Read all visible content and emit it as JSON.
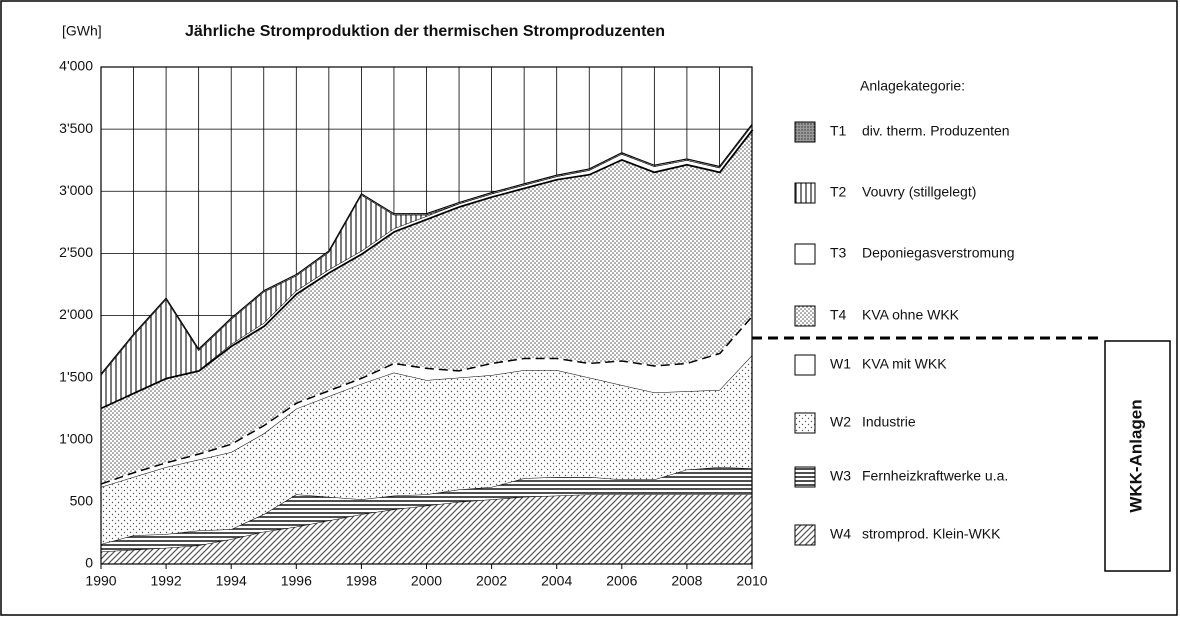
{
  "chart_data": {
    "type": "stacked-area",
    "title": "Jährliche Stromproduktion der thermischen Stromproduzenten",
    "y_label": "[GWh]",
    "legend_title": "Anlagekategorie:",
    "group_label": "WKK-Anlagen",
    "x": [
      1990,
      1991,
      1992,
      1993,
      1994,
      1995,
      1996,
      1997,
      1998,
      1999,
      2000,
      2001,
      2002,
      2003,
      2004,
      2005,
      2006,
      2007,
      2008,
      2009,
      2010
    ],
    "xlim": [
      1990,
      2010
    ],
    "xticks": [
      1990,
      1992,
      1994,
      1996,
      1998,
      2000,
      2002,
      2004,
      2006,
      2008,
      2010
    ],
    "ylim": [
      0,
      4000
    ],
    "yticks": [
      0,
      500,
      {
        "value": 1000,
        "label": "1'000"
      },
      {
        "value": 1500,
        "label": "1'500"
      },
      {
        "value": 2000,
        "label": "2'000"
      },
      {
        "value": 2500,
        "label": "2'500"
      },
      {
        "value": 3000,
        "label": "3'000"
      },
      {
        "value": 3500,
        "label": "3'500"
      },
      {
        "value": 4000,
        "label": "4'000"
      }
    ],
    "grid": true,
    "series": [
      {
        "code": "W4",
        "name": "stromprod. Klein-WKK",
        "color": "#555555",
        "values": [
          100,
          115,
          130,
          150,
          200,
          260,
          300,
          350,
          400,
          440,
          470,
          500,
          520,
          540,
          550,
          560,
          560,
          560,
          560,
          560,
          560
        ]
      },
      {
        "code": "W3",
        "name": "Fernheizkraftwerke u.a.",
        "color": "#222222",
        "values": [
          60,
          115,
          110,
          120,
          80,
          140,
          260,
          190,
          120,
          110,
          90,
          100,
          100,
          150,
          150,
          140,
          120,
          120,
          200,
          220,
          210
        ]
      },
      {
        "code": "W2",
        "name": "Industrie",
        "color": "#777777",
        "values": [
          460,
          470,
          540,
          570,
          620,
          650,
          690,
          810,
          930,
          990,
          920,
          900,
          900,
          870,
          860,
          800,
          760,
          700,
          630,
          620,
          910
        ]
      },
      {
        "code": "W1",
        "name": "KVA mit WKK",
        "color": "#ffffff",
        "values": [
          30,
          40,
          40,
          50,
          70,
          70,
          50,
          50,
          50,
          80,
          100,
          60,
          100,
          100,
          100,
          120,
          200,
          220,
          230,
          300,
          320
        ]
      },
      {
        "code": "T4",
        "name": "KVA ohne WKK",
        "color": "#666666",
        "values": [
          610,
          640,
          680,
          670,
          790,
          800,
          880,
          950,
          1000,
          1060,
          1200,
          1320,
          1340,
          1370,
          1440,
          1520,
          1620,
          1560,
          1600,
          1460,
          1500
        ]
      },
      {
        "code": "T3",
        "name": "Deponiegasverstromung",
        "color": "#ffffff",
        "values": [
          0,
          0,
          0,
          0,
          10,
          20,
          20,
          20,
          20,
          20,
          20,
          20,
          20,
          20,
          20,
          30,
          40,
          40,
          30,
          30,
          30
        ]
      },
      {
        "code": "T2",
        "name": "Vouvry (stillgelegt)",
        "color": "#333333",
        "values": [
          260,
          460,
          630,
          160,
          200,
          250,
          120,
          140,
          450,
          110,
          10,
          0,
          0,
          0,
          0,
          0,
          0,
          0,
          0,
          0,
          0
        ]
      },
      {
        "code": "T1",
        "name": "div. therm. Produzenten",
        "color": "#777777",
        "values": [
          10,
          10,
          10,
          10,
          10,
          10,
          10,
          10,
          10,
          10,
          10,
          10,
          10,
          10,
          10,
          10,
          10,
          10,
          10,
          10,
          10
        ]
      }
    ]
  }
}
